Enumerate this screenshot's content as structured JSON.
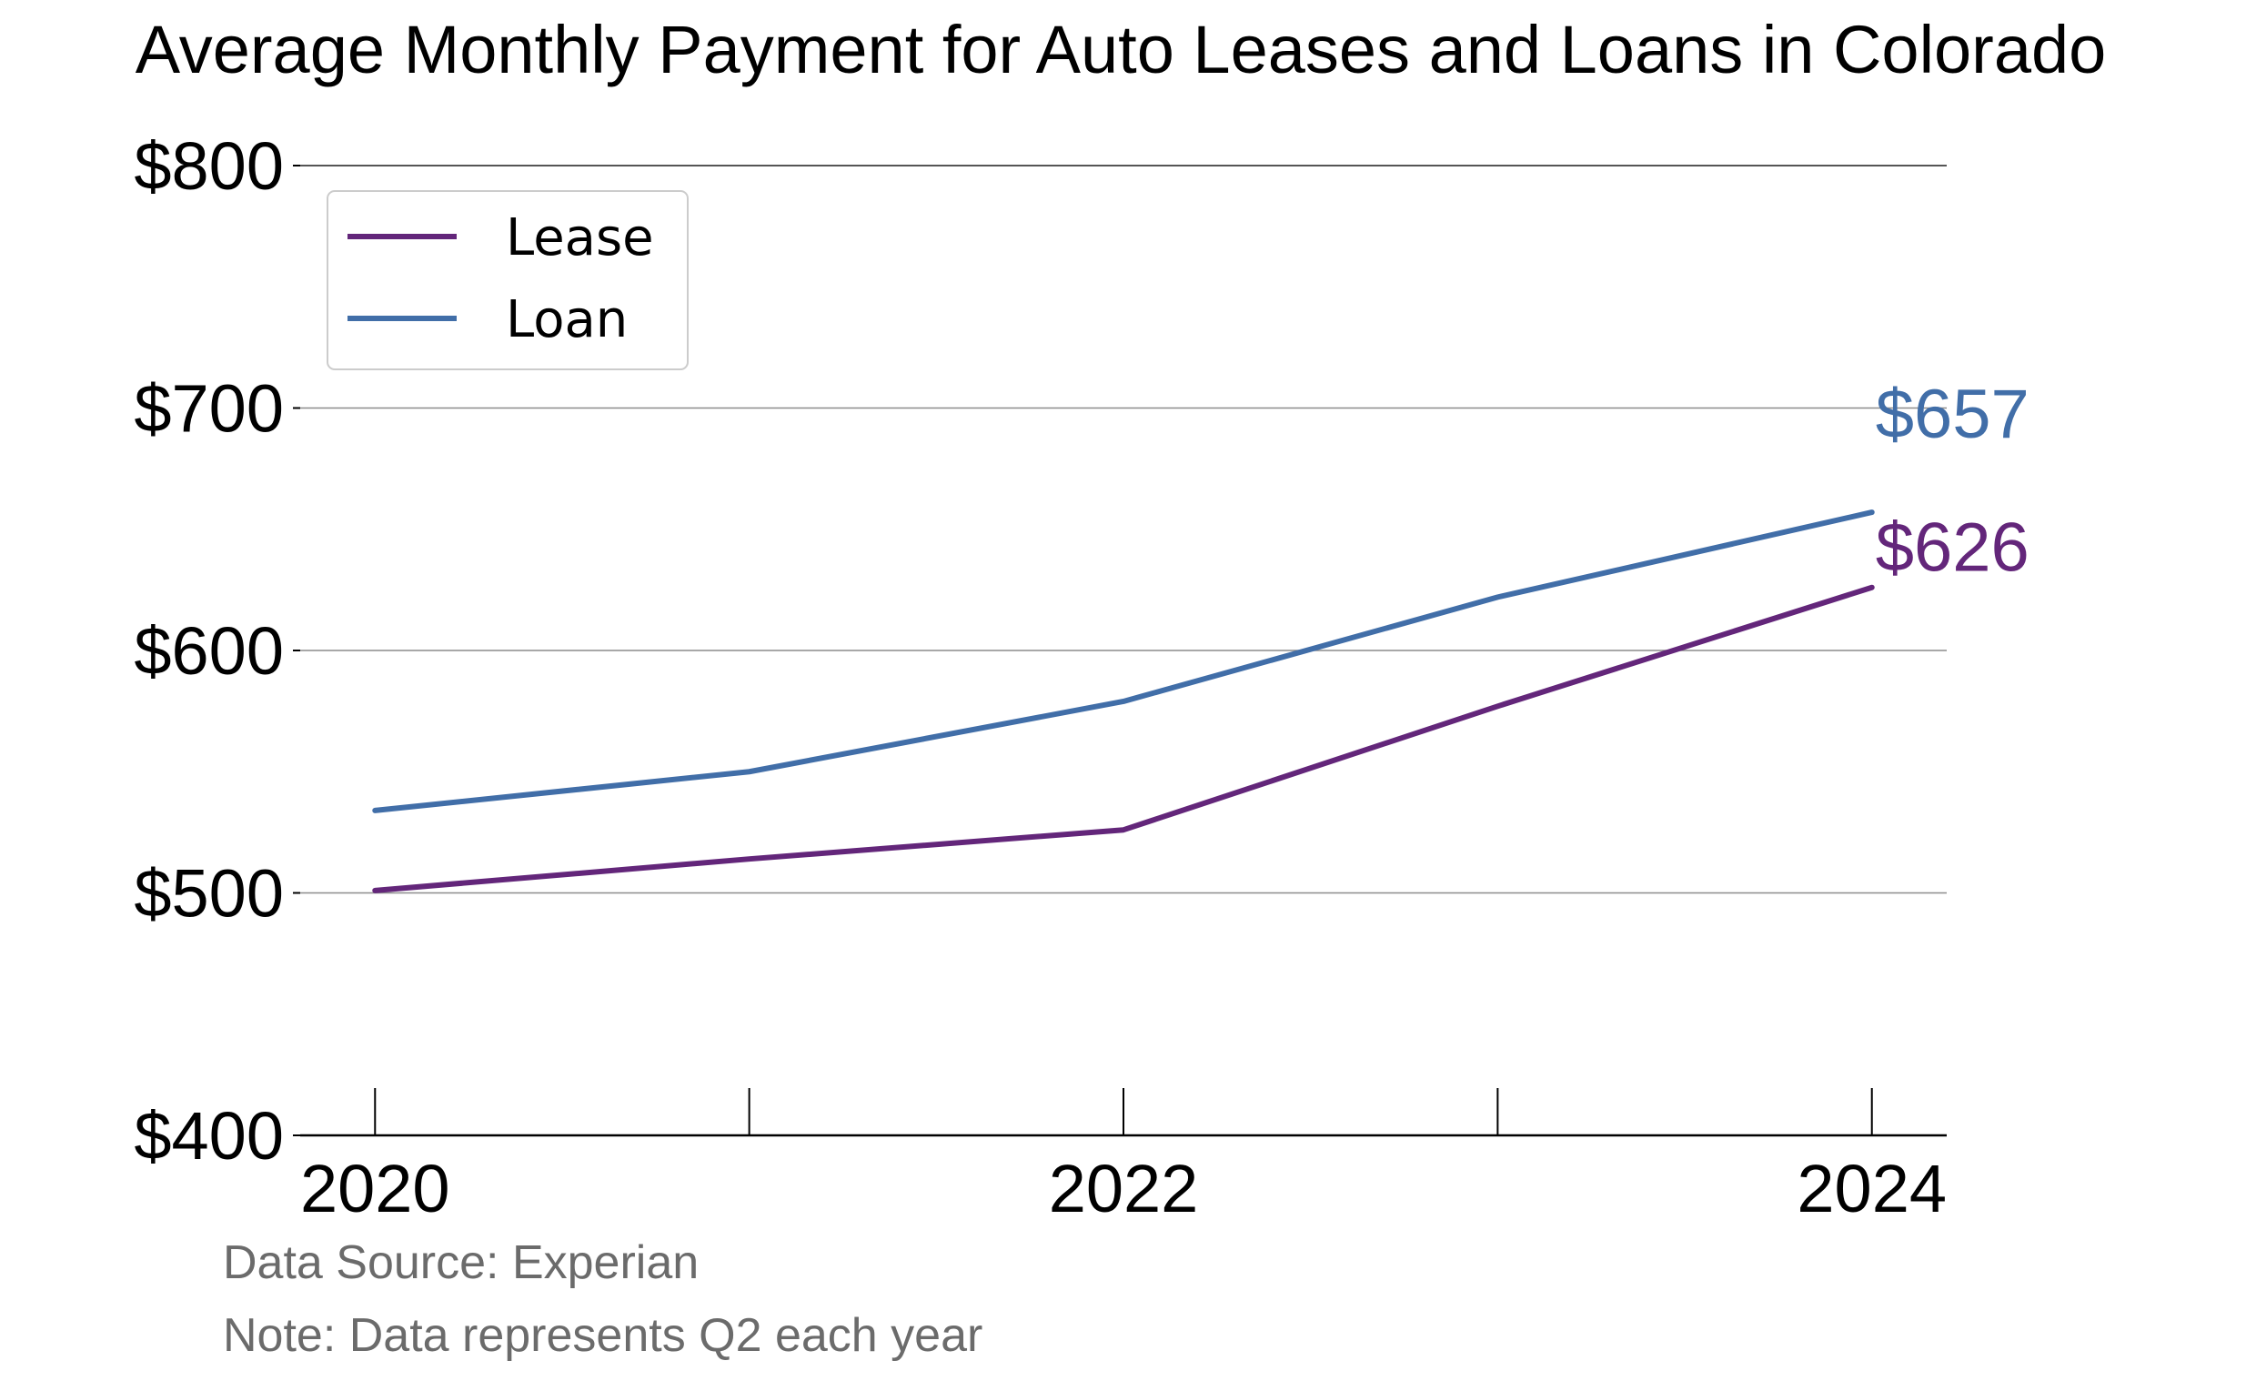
{
  "chart_data": {
    "type": "line",
    "title": "Average Monthly Payment for Auto Leases and Loans in Colorado",
    "x": [
      2020,
      2021,
      2022,
      2023,
      2024
    ],
    "x_tick_labels": [
      "2020",
      "2022",
      "2024"
    ],
    "x_tick_values": [
      2020,
      2022,
      2024
    ],
    "x_minor_ticks": [
      2020,
      2021,
      2022,
      2023,
      2024
    ],
    "xlim": [
      2019.8,
      2024.2
    ],
    "ylim": [
      400,
      800
    ],
    "y_ticks": [
      400,
      500,
      600,
      700,
      800
    ],
    "y_tick_labels": [
      "$400",
      "$500",
      "$600",
      "$700",
      "$800"
    ],
    "grid": true,
    "legend": "top-left",
    "series": [
      {
        "name": "Lease",
        "color": "#63267a",
        "values": [
          501,
          514,
          526,
          577,
          626
        ],
        "end_label": "$626"
      },
      {
        "name": "Loan",
        "color": "#416ea8",
        "values": [
          534,
          550,
          579,
          622,
          657
        ],
        "end_label": "$657"
      }
    ],
    "notes": [
      "Data Source: Experian",
      "Note: Data represents Q2 each year"
    ]
  }
}
